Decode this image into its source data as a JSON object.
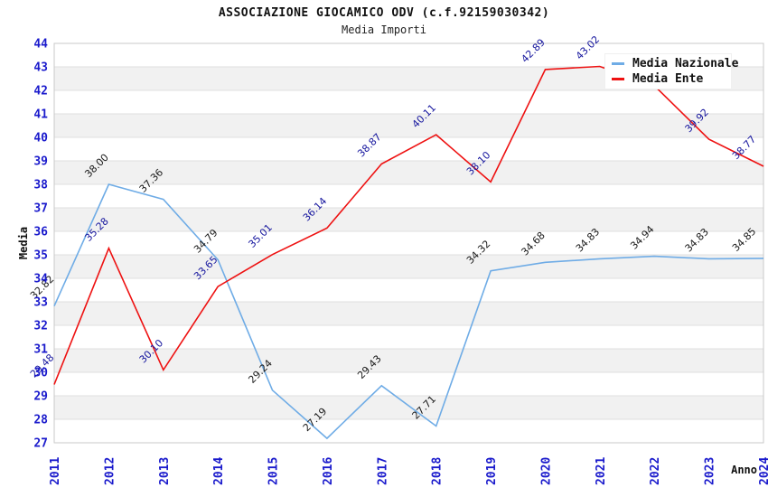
{
  "title": "ASSOCIAZIONE GIOCAMICO ODV (c.f.92159030342)",
  "subtitle": "Media Importi",
  "chart_data": {
    "type": "line",
    "x": [
      "2011",
      "2012",
      "2013",
      "2014",
      "2015",
      "2016",
      "2017",
      "2018",
      "2019",
      "2020",
      "2021",
      "2022",
      "2023",
      "2024"
    ],
    "series": [
      {
        "name": "Media Nazionale",
        "color": "#6FACE6",
        "label_color": "#1A1A1A",
        "values": [
          32.82,
          38.0,
          37.36,
          34.79,
          29.24,
          27.19,
          29.43,
          27.71,
          34.32,
          34.68,
          34.83,
          34.94,
          34.83,
          34.85
        ],
        "labels": [
          "32.82",
          "38.00",
          "37.36",
          "34.79",
          "29.24",
          "27.19",
          "29.43",
          "27.71",
          "34.32",
          "34.68",
          "34.83",
          "34.94",
          "34.83",
          "34.85"
        ]
      },
      {
        "name": "Media Ente",
        "color": "#EE1111",
        "label_color": "#16169E",
        "values": [
          29.48,
          35.28,
          30.1,
          33.65,
          35.01,
          36.14,
          38.87,
          40.11,
          38.1,
          42.89,
          43.02,
          42.2,
          39.92,
          38.77
        ],
        "labels": [
          "29.48",
          "35.28",
          "30.10",
          "33.65",
          "35.01",
          "36.14",
          "38.87",
          "40.11",
          "38.10",
          "42.89",
          "43.02",
          "",
          "39.92",
          "38.77"
        ]
      }
    ],
    "xlabel": "Anno",
    "ylabel": "Media",
    "ylim": [
      27,
      44
    ],
    "y_ticks": [
      "44",
      "43",
      "42",
      "41",
      "40",
      "39",
      "38",
      "37",
      "36",
      "35",
      "34",
      "33",
      "32",
      "31",
      "30",
      "29",
      "28",
      "27"
    ],
    "axis_tick_color": "#1A1ACC",
    "grid": "horizontal gridlines with alternating white/grey bands",
    "legend_position": "top-right"
  }
}
